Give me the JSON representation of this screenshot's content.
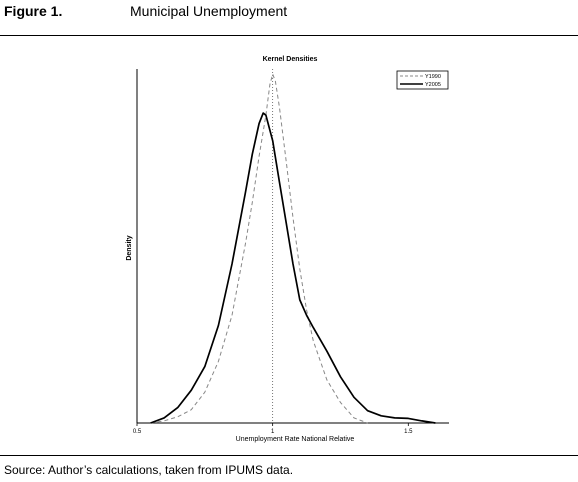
{
  "figure": {
    "label": "Figure 1.",
    "title": "Municipal Unemployment",
    "source": "Source: Author’s calculations, taken from IPUMS data."
  },
  "chart_data": {
    "type": "line",
    "title": "Kernel Densities",
    "xlabel": "Unemployment Rate National Relative",
    "ylabel": "Density",
    "xlim": [
      0.5,
      1.65
    ],
    "ylim": [
      0,
      3.45
    ],
    "x_ticks": [
      {
        "value": 0.5,
        "label": "0.5"
      },
      {
        "value": 1.0,
        "label": "1"
      },
      {
        "value": 1.5,
        "label": "1.5"
      }
    ],
    "reference_line_x": 1.0,
    "legend_position": "top-right",
    "grid": false,
    "series": [
      {
        "name": "Y1990",
        "style": "dashed",
        "color": "#888888",
        "points": [
          [
            0.55,
            0.0
          ],
          [
            0.6,
            0.02
          ],
          [
            0.65,
            0.06
          ],
          [
            0.7,
            0.13
          ],
          [
            0.75,
            0.3
          ],
          [
            0.8,
            0.6
          ],
          [
            0.85,
            1.05
          ],
          [
            0.9,
            1.75
          ],
          [
            0.925,
            2.15
          ],
          [
            0.95,
            2.6
          ],
          [
            0.975,
            3.0
          ],
          [
            0.99,
            3.3
          ],
          [
            1.0,
            3.4
          ],
          [
            1.01,
            3.33
          ],
          [
            1.025,
            3.08
          ],
          [
            1.05,
            2.55
          ],
          [
            1.075,
            2.0
          ],
          [
            1.1,
            1.5
          ],
          [
            1.125,
            1.1
          ],
          [
            1.15,
            0.8
          ],
          [
            1.2,
            0.42
          ],
          [
            1.25,
            0.2
          ],
          [
            1.3,
            0.05
          ],
          [
            1.35,
            0.0
          ]
        ]
      },
      {
        "name": "Y2005",
        "style": "solid",
        "color": "#000000",
        "points": [
          [
            0.55,
            0.0
          ],
          [
            0.6,
            0.05
          ],
          [
            0.65,
            0.15
          ],
          [
            0.7,
            0.32
          ],
          [
            0.75,
            0.55
          ],
          [
            0.8,
            0.95
          ],
          [
            0.85,
            1.55
          ],
          [
            0.9,
            2.25
          ],
          [
            0.925,
            2.62
          ],
          [
            0.95,
            2.92
          ],
          [
            0.965,
            3.02
          ],
          [
            0.975,
            3.0
          ],
          [
            1.0,
            2.75
          ],
          [
            1.025,
            2.35
          ],
          [
            1.05,
            1.95
          ],
          [
            1.075,
            1.55
          ],
          [
            1.1,
            1.2
          ],
          [
            1.125,
            1.05
          ],
          [
            1.15,
            0.93
          ],
          [
            1.2,
            0.7
          ],
          [
            1.25,
            0.45
          ],
          [
            1.3,
            0.25
          ],
          [
            1.35,
            0.12
          ],
          [
            1.4,
            0.07
          ],
          [
            1.45,
            0.05
          ],
          [
            1.5,
            0.045
          ],
          [
            1.55,
            0.02
          ],
          [
            1.6,
            0.0
          ]
        ]
      }
    ]
  }
}
